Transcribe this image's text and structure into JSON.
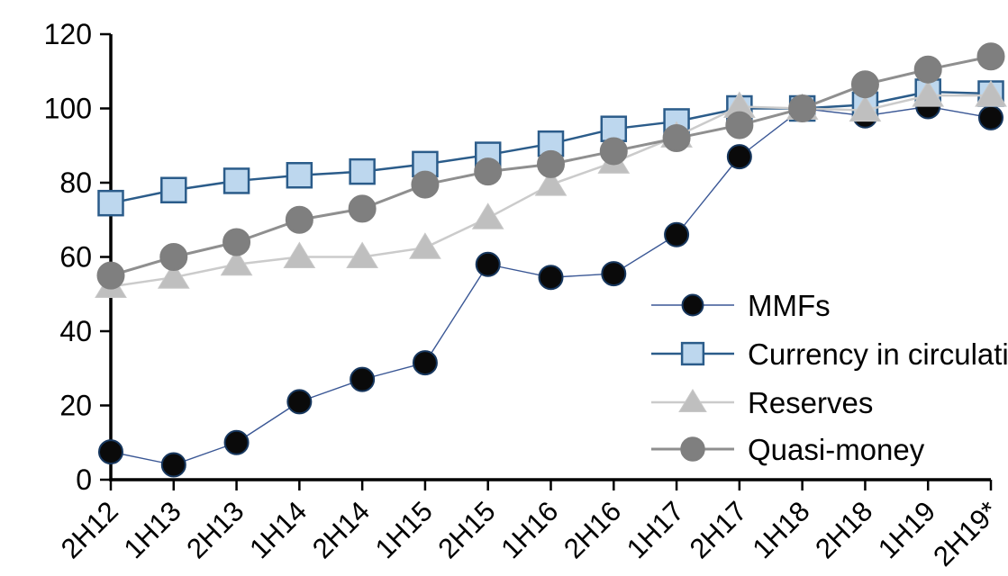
{
  "chart_data": {
    "type": "line",
    "title": "",
    "xlabel": "",
    "ylabel": "",
    "categories": [
      "2H12",
      "1H13",
      "2H13",
      "1H14",
      "2H14",
      "1H15",
      "2H15",
      "1H16",
      "2H16",
      "1H17",
      "2H17",
      "1H18",
      "2H18",
      "1H19",
      "2H19*"
    ],
    "series": [
      {
        "name": "MMFs",
        "marker": "circle",
        "marker_fill": "#0A0A0A",
        "marker_stroke": "#17375E",
        "line_color": "#3A5795",
        "line_width": 1.4,
        "values": [
          7.5,
          4,
          10,
          21,
          27,
          31.5,
          58,
          54.5,
          55.5,
          66,
          87,
          100,
          98,
          100.5,
          97.5
        ]
      },
      {
        "name": "Currency in circulation",
        "marker": "square",
        "marker_fill": "#BDD7EE",
        "marker_stroke": "#2B5C8A",
        "line_color": "#2B5C8A",
        "line_width": 2.5,
        "values": [
          74.5,
          78,
          80.5,
          82,
          83,
          85,
          87.5,
          90.5,
          94.5,
          96.5,
          100,
          100,
          101,
          104.5,
          104
        ]
      },
      {
        "name": "Reserves",
        "marker": "triangle",
        "marker_fill": "#BFBFBF",
        "marker_stroke": "#C8C8C8",
        "line_color": "#CBCBCB",
        "line_width": 2.5,
        "values": [
          52,
          54.5,
          58,
          60,
          60,
          62.5,
          70.5,
          79.5,
          85.5,
          92.5,
          100.5,
          100,
          99.5,
          103.5,
          103.5
        ]
      },
      {
        "name": "Quasi-money",
        "marker": "circle",
        "marker_fill": "#7F7F7F",
        "marker_stroke": "#7F7F7F",
        "line_color": "#8F8F8F",
        "line_width": 3,
        "values": [
          55,
          60,
          64,
          70,
          73,
          79.5,
          83,
          85,
          88.5,
          92,
          95.5,
          100,
          106.5,
          110.5,
          114
        ]
      }
    ],
    "ylim": [
      0,
      120
    ],
    "yticks": [
      0,
      20,
      40,
      60,
      80,
      100,
      120
    ],
    "grid": false,
    "legend_position": "inside-right",
    "axis_color": "#000000",
    "background": "#FFFFFF"
  }
}
